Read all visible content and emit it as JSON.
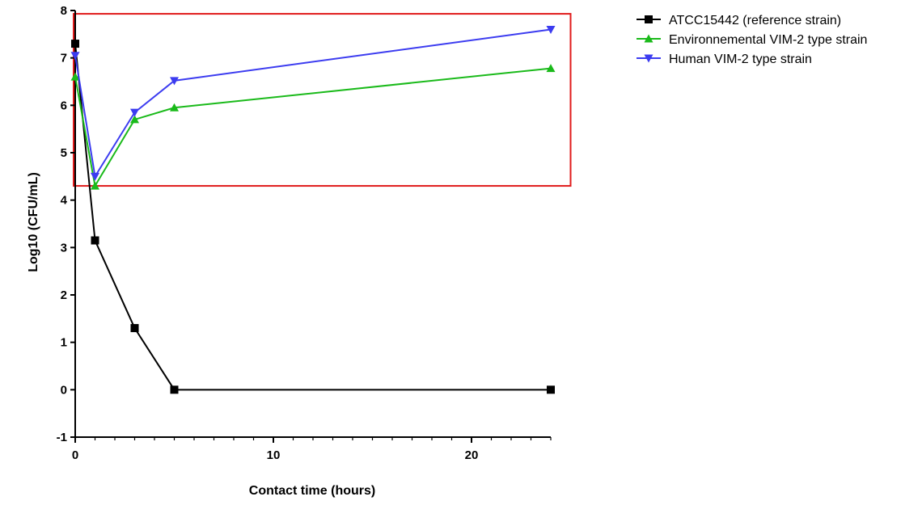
{
  "chart_data": {
    "type": "line",
    "xlabel": "Contact time (hours)",
    "ylabel": "Log10 (CFU/mL)",
    "xlim": [
      0,
      24
    ],
    "ylim": [
      -1,
      8
    ],
    "x_ticks": [
      "0",
      "10",
      "20"
    ],
    "y_ticks": [
      "-1",
      "0",
      "1",
      "2",
      "3",
      "4",
      "5",
      "6",
      "7",
      "8"
    ],
    "x_minor_tick_step": 1,
    "grid": false,
    "legend_position": "top-right",
    "x": [
      0,
      1,
      3,
      5,
      24
    ],
    "series": [
      {
        "name": "ATCC15442 (reference strain)",
        "values": [
          7.3,
          3.15,
          1.3,
          0,
          0
        ],
        "color": "#000000",
        "marker": "square"
      },
      {
        "name": "Environnemental VIM-2 type strain",
        "values": [
          6.6,
          4.3,
          5.7,
          5.95,
          6.78
        ],
        "color": "#1aba1a",
        "marker": "triangle-up"
      },
      {
        "name": "Human VIM-2 type strain",
        "values": [
          7.05,
          4.5,
          5.85,
          6.52,
          7.6
        ],
        "color": "#3c3cf0",
        "marker": "triangle-down"
      }
    ],
    "highlight_box": {
      "x_range": [
        0,
        25
      ],
      "y_range": [
        4.3,
        7.93
      ],
      "color": "#e01b1b"
    }
  }
}
